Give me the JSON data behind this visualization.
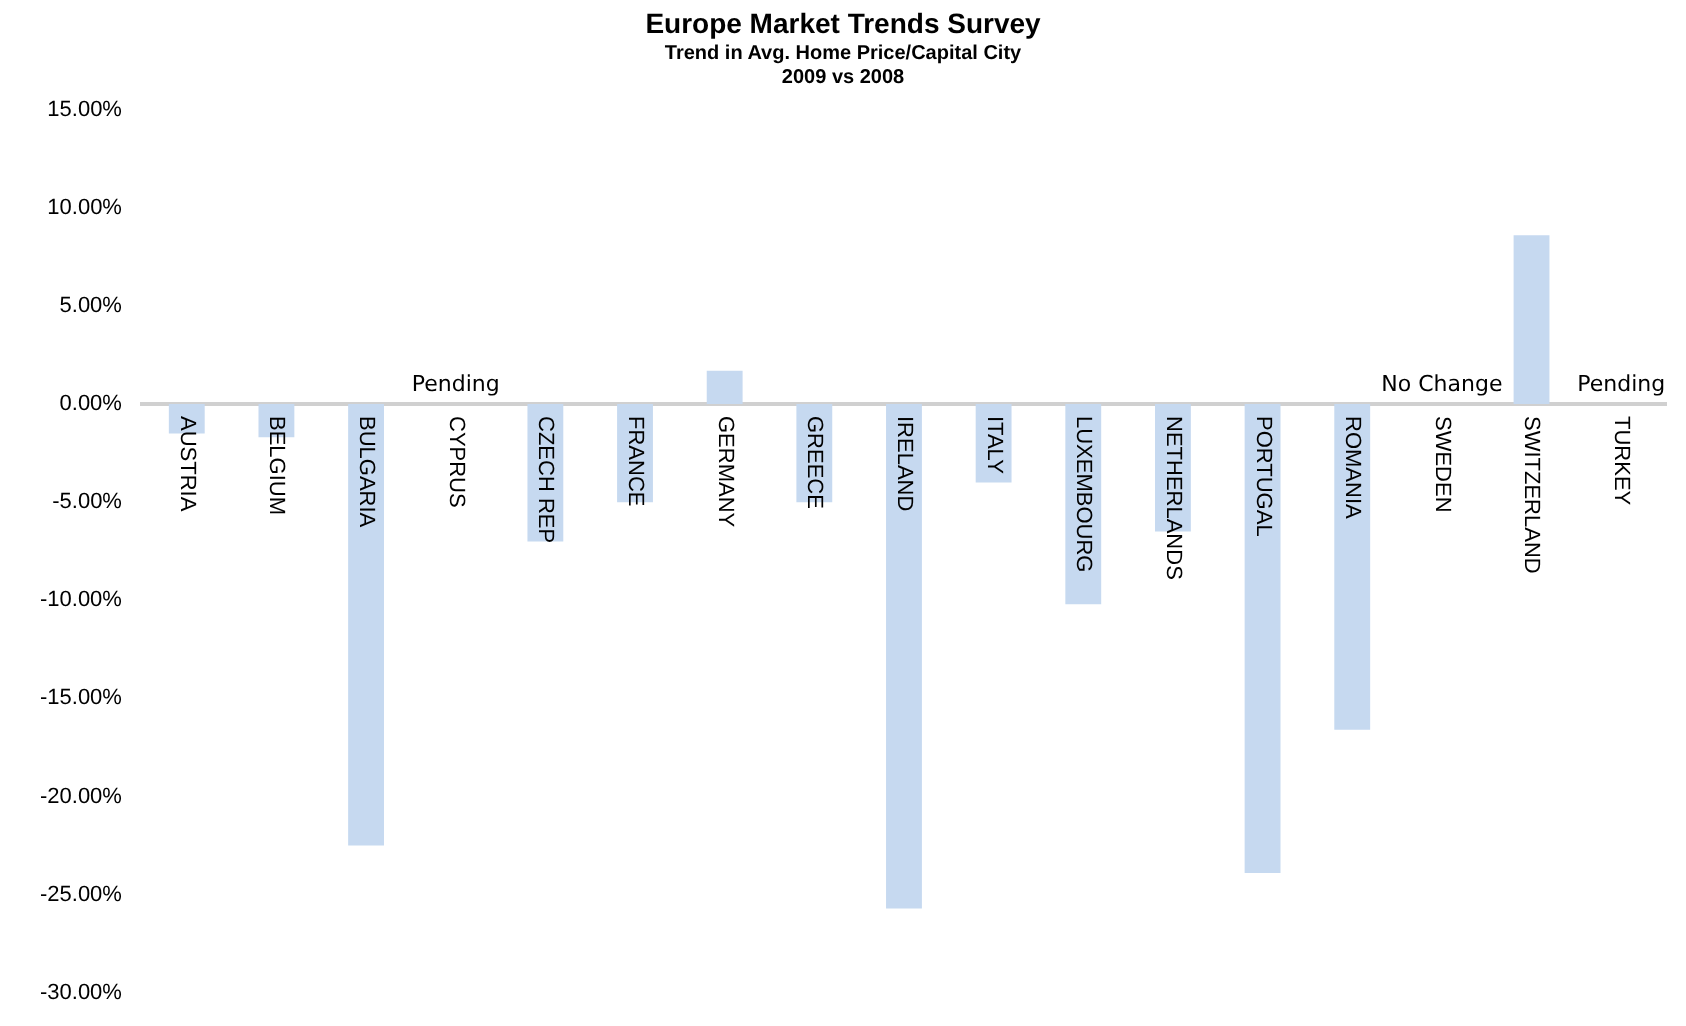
{
  "chart_data": {
    "type": "bar",
    "title": "Europe Market Trends Survey",
    "subtitle": "Trend in Avg. Home Price/Capital City\n2009 vs 2008",
    "categories": [
      "AUSTRIA",
      "BELGIUM",
      "BULGARIA",
      "CYPRUS",
      "CZECH REP",
      "FRANCE",
      "GERMANY",
      "GREECE",
      "IRELAND",
      "ITALY",
      "LUXEMBOURG",
      "NETHERLANDS",
      "PORTUGAL",
      "ROMANIA",
      "SWEDEN",
      "SWITZERLAND",
      "TURKEY"
    ],
    "values": [
      -1.5,
      -1.7,
      -22.5,
      null,
      -7.0,
      -5.0,
      1.7,
      -5.0,
      -25.7,
      -4.0,
      -10.2,
      -6.5,
      -23.9,
      -16.6,
      0,
      8.6,
      null
    ],
    "color": "#c6d9f0",
    "ylim": [
      -30,
      15
    ],
    "yticks": [
      {
        "value": -30,
        "label": "-30.00%"
      },
      {
        "value": -25,
        "label": "-25.00%"
      },
      {
        "value": -20,
        "label": "-20.00%"
      },
      {
        "value": -15,
        "label": "-15.00%"
      },
      {
        "value": -10,
        "label": "-10.00%"
      },
      {
        "value": -5,
        "label": "-5.00%"
      },
      {
        "value": 0,
        "label": "0.00%"
      },
      {
        "value": 5,
        "label": "5.00%"
      },
      {
        "value": 10,
        "label": "10.00%"
      },
      {
        "value": 15,
        "label": "15.00%"
      }
    ],
    "grid": false,
    "legend": false,
    "annotations": [
      "Pending",
      "No Change",
      "Pending"
    ]
  }
}
